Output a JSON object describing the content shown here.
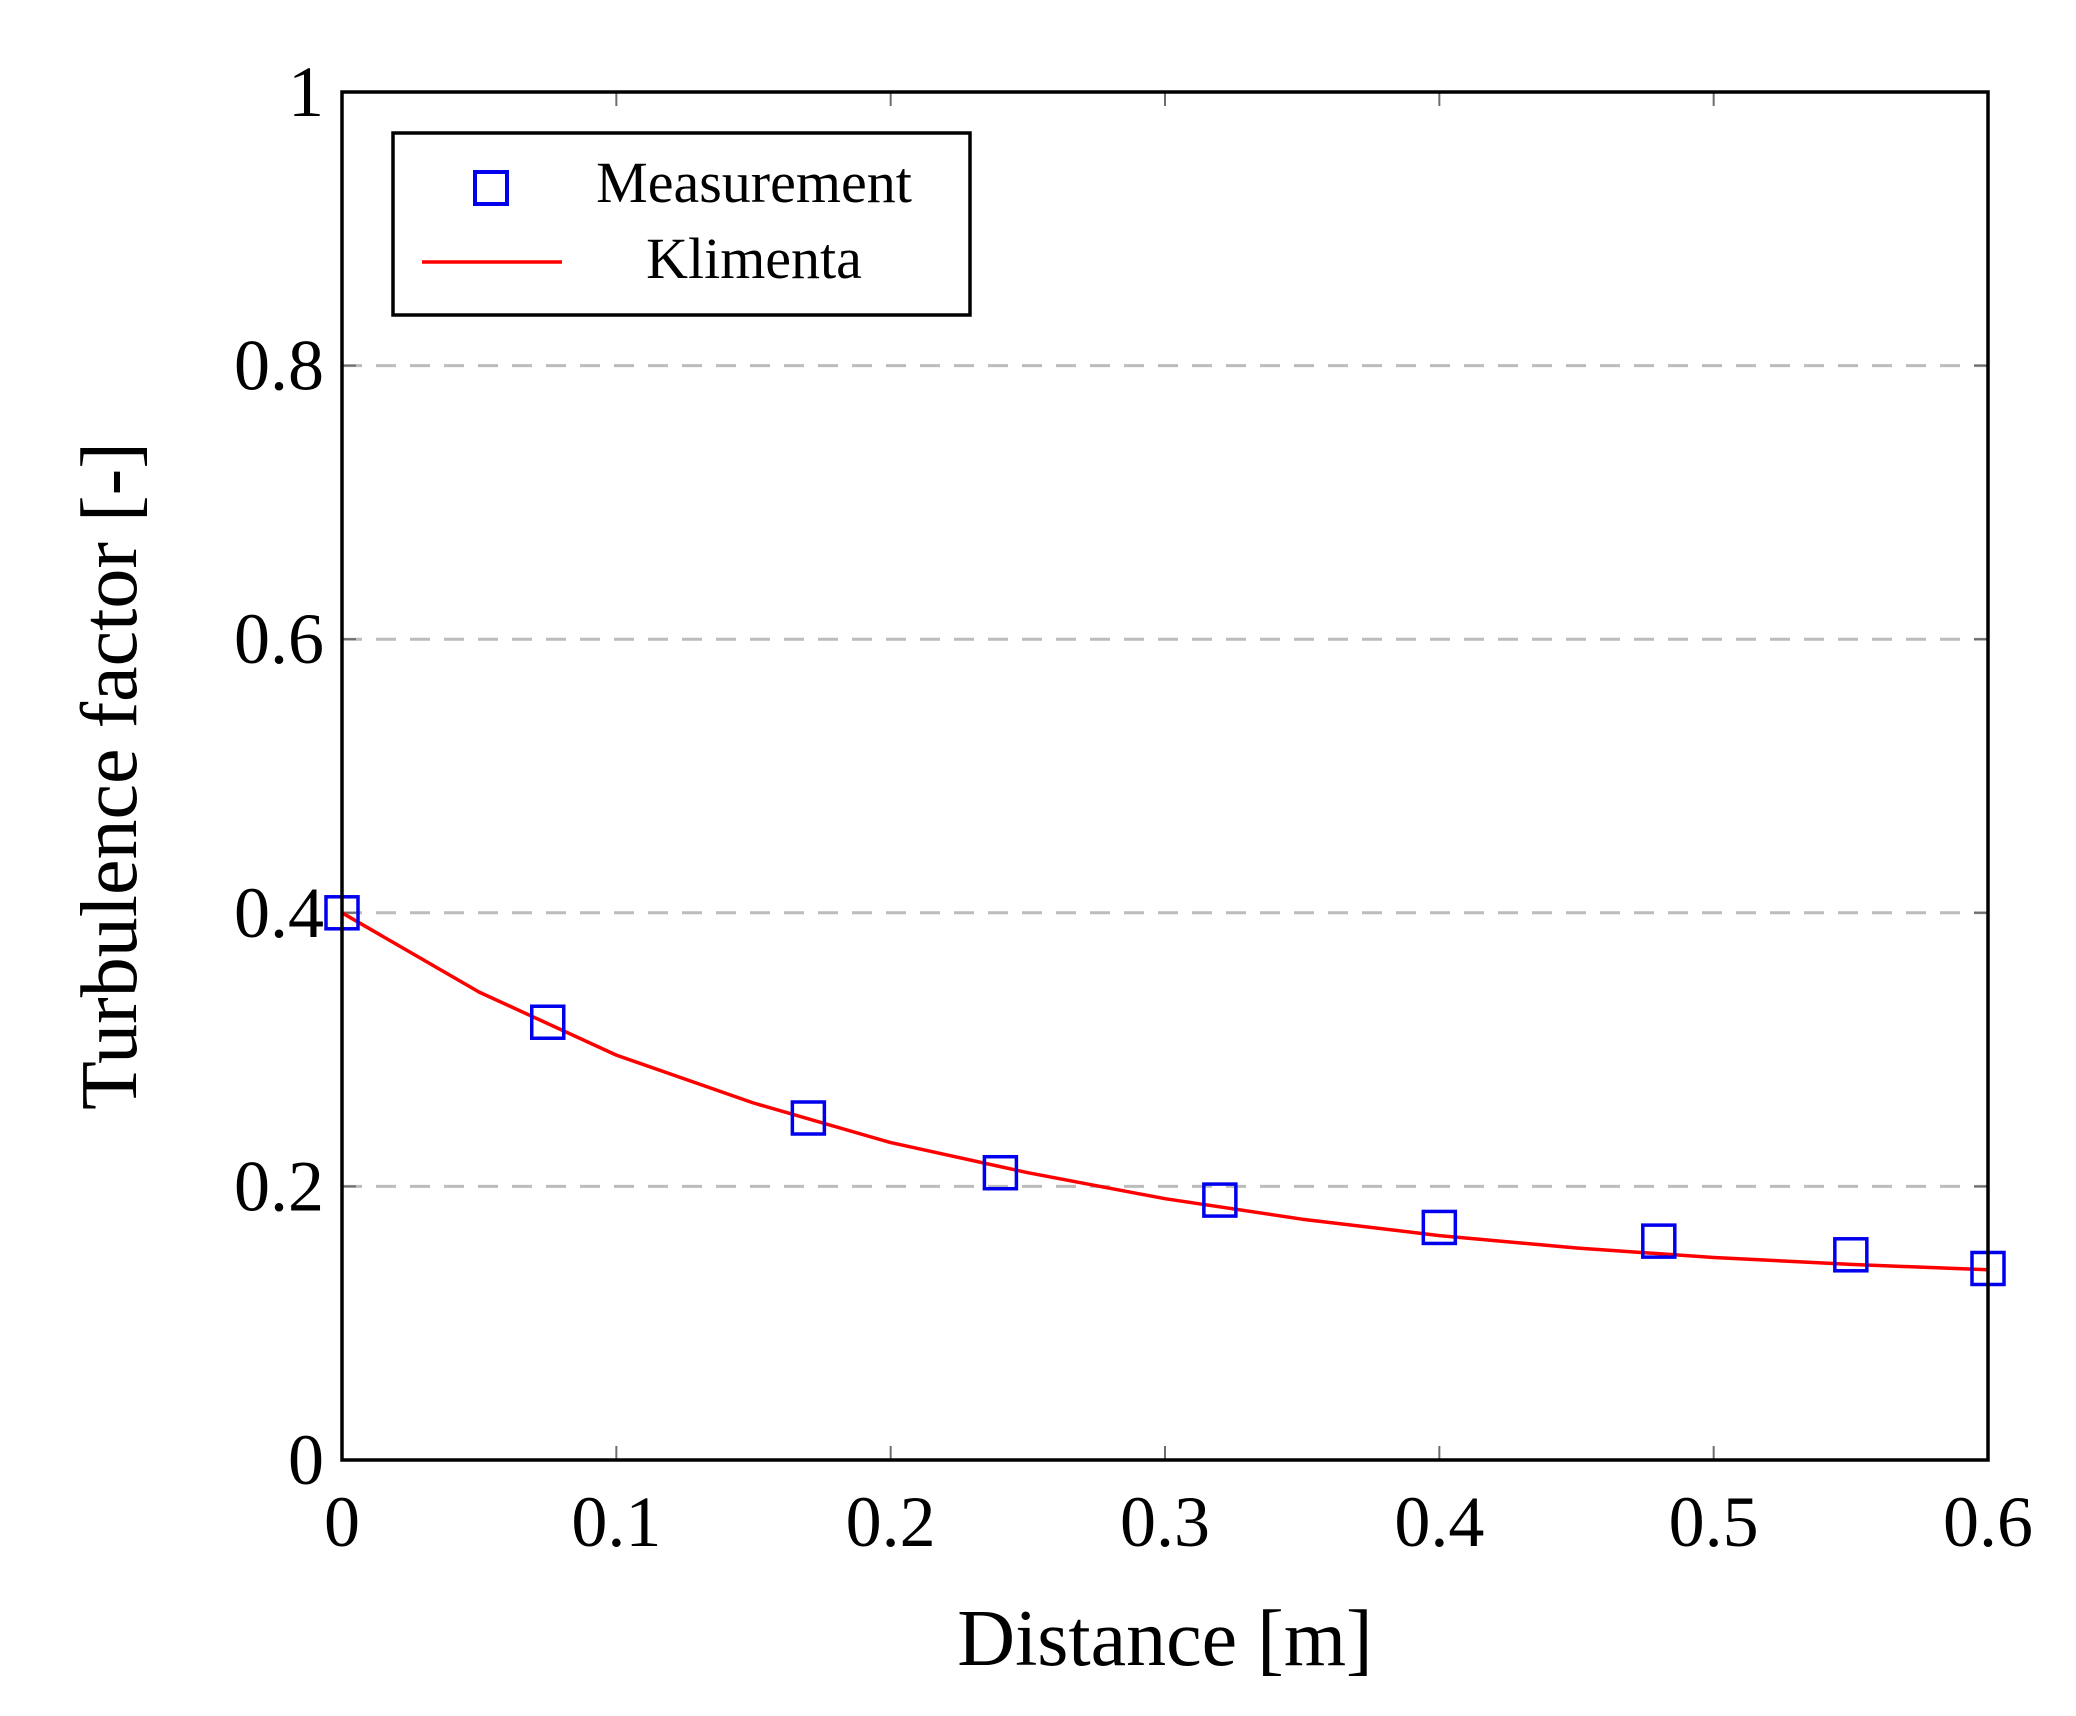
{
  "chart_data": {
    "type": "line",
    "title": "",
    "xlabel": "Distance [m]",
    "ylabel": "Turbulence factor [-]",
    "xlim": [
      0,
      0.6
    ],
    "ylim": [
      0,
      1
    ],
    "xticks": [
      0,
      0.1,
      0.2,
      0.3,
      0.4,
      0.5,
      0.6
    ],
    "xtick_labels": [
      "0",
      "0.1",
      "0.2",
      "0.3",
      "0.4",
      "0.5",
      "0.6"
    ],
    "yticks": [
      0,
      0.2,
      0.4,
      0.6,
      0.8,
      1
    ],
    "ytick_labels": [
      "0",
      "0.2",
      "0.4",
      "0.6",
      "0.8",
      "1"
    ],
    "grid": "horizontal dashed",
    "legend_position": "top-left",
    "series": [
      {
        "name": "Measurement",
        "kind": "markers",
        "marker": "square-outline",
        "color": "#0000ee",
        "x": [
          0,
          0.075,
          0.17,
          0.24,
          0.32,
          0.4,
          0.48,
          0.55,
          0.6
        ],
        "y": [
          0.4,
          0.32,
          0.25,
          0.21,
          0.19,
          0.17,
          0.16,
          0.15,
          0.14
        ]
      },
      {
        "name": "Klimenta",
        "kind": "line",
        "color": "#ff0000",
        "x": [
          0,
          0.05,
          0.1,
          0.15,
          0.2,
          0.25,
          0.3,
          0.35,
          0.4,
          0.45,
          0.5,
          0.55,
          0.6
        ],
        "y": [
          0.4,
          0.342,
          0.296,
          0.261,
          0.232,
          0.21,
          0.191,
          0.176,
          0.164,
          0.155,
          0.148,
          0.143,
          0.139
        ]
      }
    ]
  }
}
